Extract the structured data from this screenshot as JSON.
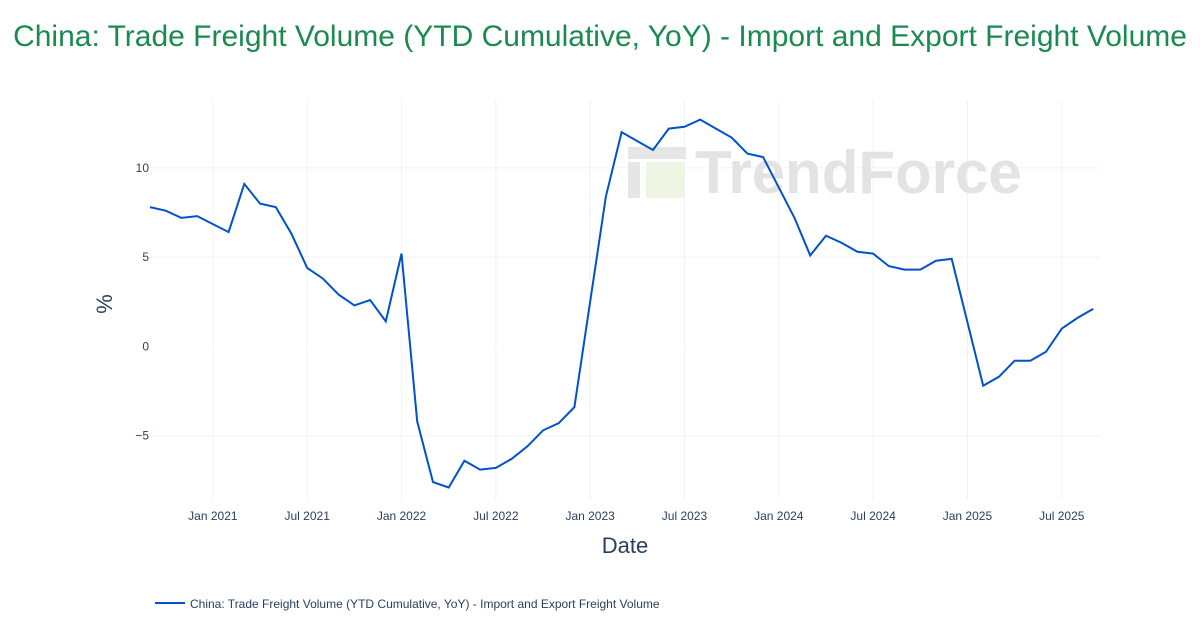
{
  "chart_data": {
    "type": "line",
    "title": "China: Trade Freight Volume (YTD Cumulative, YoY) - Import and Export Freight Volume",
    "xlabel": "Date",
    "ylabel": "%",
    "ylim": [
      -8.6,
      13.8
    ],
    "grid": true,
    "legend_position": "bottom-left",
    "watermark": "TrendForce",
    "x_ticks": [
      {
        "label": "Jan 2021",
        "month": "2021-01"
      },
      {
        "label": "Jul 2021",
        "month": "2021-07"
      },
      {
        "label": "Jan 2022",
        "month": "2022-01"
      },
      {
        "label": "Jul 2022",
        "month": "2022-07"
      },
      {
        "label": "Jan 2023",
        "month": "2023-01"
      },
      {
        "label": "Jul 2023",
        "month": "2023-07"
      },
      {
        "label": "Jan 2024",
        "month": "2024-01"
      },
      {
        "label": "Jul 2024",
        "month": "2024-07"
      },
      {
        "label": "Jan 2025",
        "month": "2025-01"
      },
      {
        "label": "Jul 2025",
        "month": "2025-07"
      }
    ],
    "y_ticks": [
      {
        "label": "10",
        "value": 10
      },
      {
        "label": "5",
        "value": 5
      },
      {
        "label": "0",
        "value": 0
      },
      {
        "label": "−5",
        "value": -5
      }
    ],
    "series": [
      {
        "name": "China: Trade Freight Volume (YTD Cumulative, YoY) - Import and Export Freight Volume",
        "color": "#0052cc",
        "x": [
          "2020-09",
          "2020-10",
          "2020-11",
          "2020-12",
          "2021-02",
          "2021-03",
          "2021-04",
          "2021-05",
          "2021-06",
          "2021-07",
          "2021-08",
          "2021-09",
          "2021-10",
          "2021-11",
          "2021-12",
          "2022-01",
          "2022-02",
          "2022-03",
          "2022-04",
          "2022-05",
          "2022-06",
          "2022-07",
          "2022-08",
          "2022-09",
          "2022-10",
          "2022-11",
          "2022-12",
          "2023-02",
          "2023-03",
          "2023-04",
          "2023-05",
          "2023-06",
          "2023-07",
          "2023-08",
          "2023-09",
          "2023-10",
          "2023-11",
          "2023-12",
          "2024-02",
          "2024-03",
          "2024-04",
          "2024-05",
          "2024-06",
          "2024-07",
          "2024-08",
          "2024-09",
          "2024-10",
          "2024-11",
          "2024-12",
          "2025-02",
          "2025-03",
          "2025-04",
          "2025-05",
          "2025-06",
          "2025-07",
          "2025-08",
          "2025-09"
        ],
        "values": [
          7.8,
          7.6,
          7.2,
          7.3,
          6.4,
          9.1,
          8.0,
          7.8,
          6.3,
          4.4,
          3.8,
          2.9,
          2.3,
          2.6,
          1.4,
          5.2,
          -4.2,
          -7.6,
          -7.9,
          -6.4,
          -6.9,
          -6.8,
          -6.3,
          -5.6,
          -4.7,
          -4.3,
          -3.4,
          8.4,
          12.0,
          11.5,
          11.0,
          12.2,
          12.3,
          12.7,
          12.2,
          11.7,
          10.8,
          10.6,
          7.2,
          5.1,
          6.2,
          5.8,
          5.3,
          5.2,
          4.5,
          4.3,
          4.3,
          4.8,
          4.9,
          -2.2,
          -1.7,
          -0.8,
          -0.8,
          -0.3,
          1.0,
          1.6,
          2.1
        ]
      }
    ]
  }
}
